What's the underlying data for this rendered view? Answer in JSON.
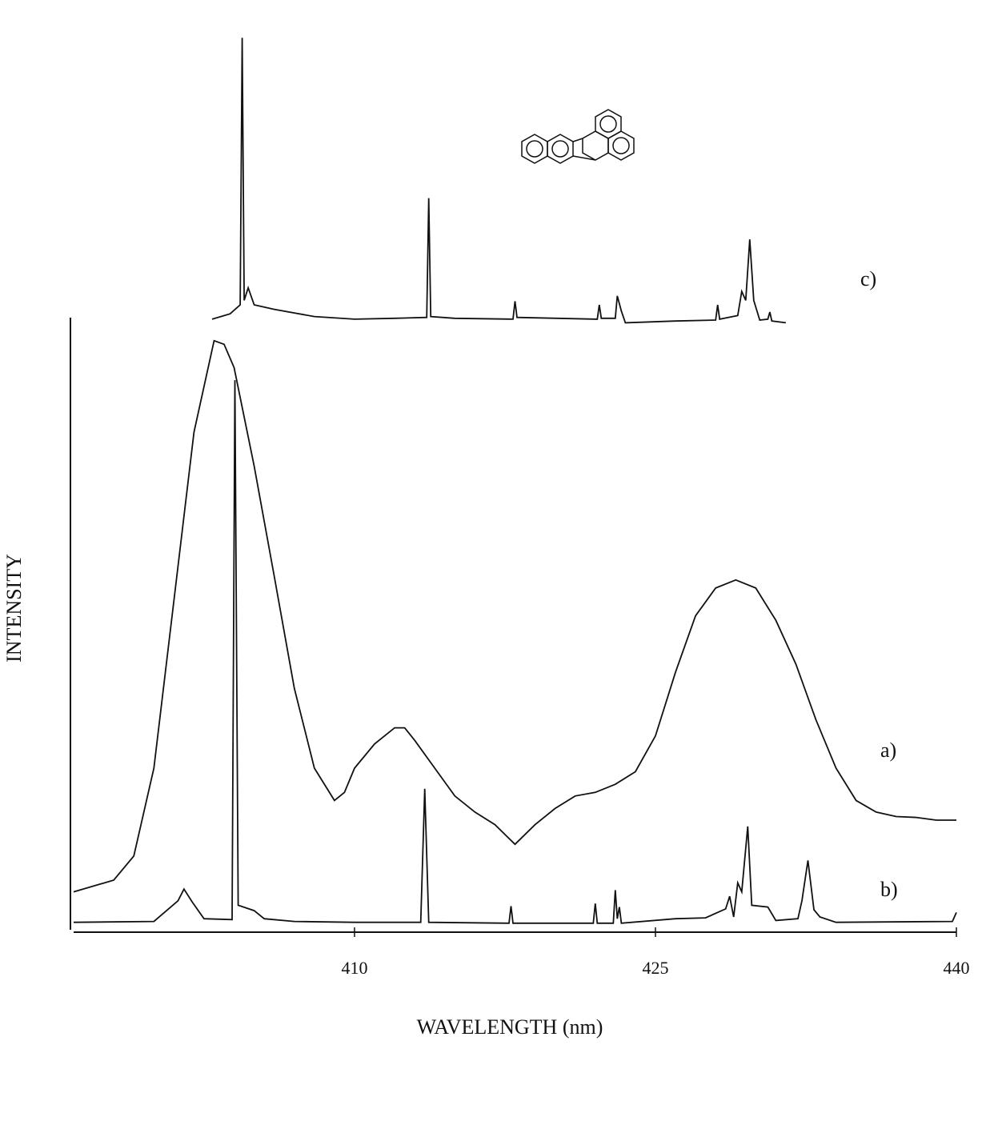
{
  "chart_data": {
    "type": "line",
    "xlabel": "WAVELENGTH (nm)",
    "ylabel": "INTENSITY",
    "xlim": [
      396,
      440
    ],
    "xticks": [
      410,
      425,
      440
    ],
    "ylim": [
      0,
      100
    ],
    "color": "#111111",
    "series": [
      {
        "name": "a)",
        "x": [
          396,
          398,
          399,
          400,
          401,
          402,
          403,
          403.5,
          404,
          405,
          406,
          407,
          408,
          409,
          409.5,
          410,
          411,
          412,
          412.5,
          413,
          414,
          415,
          416,
          417,
          418,
          419,
          420,
          421,
          422,
          423,
          424,
          425,
          426,
          427,
          428,
          429,
          430,
          431,
          432,
          433,
          434,
          435,
          436,
          437,
          438,
          439,
          440
        ],
        "values": [
          4.5,
          5.8,
          8.5,
          18.3,
          37,
          55.8,
          66,
          65.6,
          63,
          52,
          39.7,
          27.2,
          18.3,
          14.7,
          15.6,
          18.3,
          21,
          22.8,
          22.8,
          21.4,
          18.3,
          15.2,
          13.4,
          12,
          9.8,
          12,
          13.8,
          15.2,
          15.6,
          16.5,
          17.9,
          21.9,
          29,
          35.3,
          38.4,
          39.3,
          38.4,
          34.8,
          29.9,
          23.7,
          18.3,
          14.7,
          13.4,
          12.9,
          12.8,
          12.5,
          12.5
        ]
      },
      {
        "name": "b)",
        "x": [
          396,
          400,
          401.2,
          401.5,
          401.9,
          402.5,
          403.9,
          404.04,
          404.2,
          405,
          405.5,
          407,
          410,
          413.3,
          413.5,
          413.7,
          417.7,
          417.8,
          417.9,
          421.9,
          422,
          422.1,
          422.9,
          423,
          423.1,
          423.2,
          423.3,
          426,
          427.5,
          428.5,
          428.7,
          428.9,
          429.1,
          429.3,
          429.6,
          429.8,
          430.6,
          431,
          432.1,
          432.3,
          432.6,
          432.9,
          433.2,
          434,
          439.8,
          440
        ],
        "values": [
          1.1,
          1.2,
          3.5,
          4.8,
          3.4,
          1.5,
          1.4,
          61.6,
          3,
          2.4,
          1.5,
          1.2,
          1.1,
          1.1,
          16,
          1.1,
          1,
          2.9,
          1,
          1,
          3.2,
          1,
          1,
          4.7,
          1.5,
          2.8,
          1,
          1.5,
          1.6,
          2.6,
          4,
          1.7,
          5.5,
          4.5,
          11.8,
          3,
          2.8,
          1.3,
          1.5,
          3.5,
          8,
          2.5,
          1.7,
          1.1,
          1.2,
          2.2
        ]
      },
      {
        "name": "c)",
        "x": [
          402.9,
          403.8,
          404.3,
          404.4,
          404.5,
          404.7,
          405,
          406,
          408,
          410,
          412,
          413.6,
          413.7,
          413.8,
          415,
          417.9,
          418,
          418.1,
          422.1,
          422.2,
          422.3,
          423,
          423.1,
          423.3,
          423.5,
          426,
          428,
          428.1,
          428.2,
          429.1,
          429.3,
          429.5,
          429.7,
          429.9,
          430.2,
          430.6,
          430.7,
          430.8,
          431.5
        ],
        "values": [
          68.4,
          69,
          70,
          99.8,
          70.5,
          71.9,
          70,
          69.5,
          68.7,
          68.4,
          68.5,
          68.6,
          81.9,
          68.7,
          68.5,
          68.4,
          70.4,
          68.6,
          68.4,
          70,
          68.5,
          68.5,
          71,
          69.3,
          68,
          68.2,
          68.3,
          70,
          68.4,
          68.8,
          71.5,
          70.5,
          77.3,
          70.5,
          68.3,
          68.4,
          69.2,
          68.2,
          68
        ]
      }
    ]
  }
}
